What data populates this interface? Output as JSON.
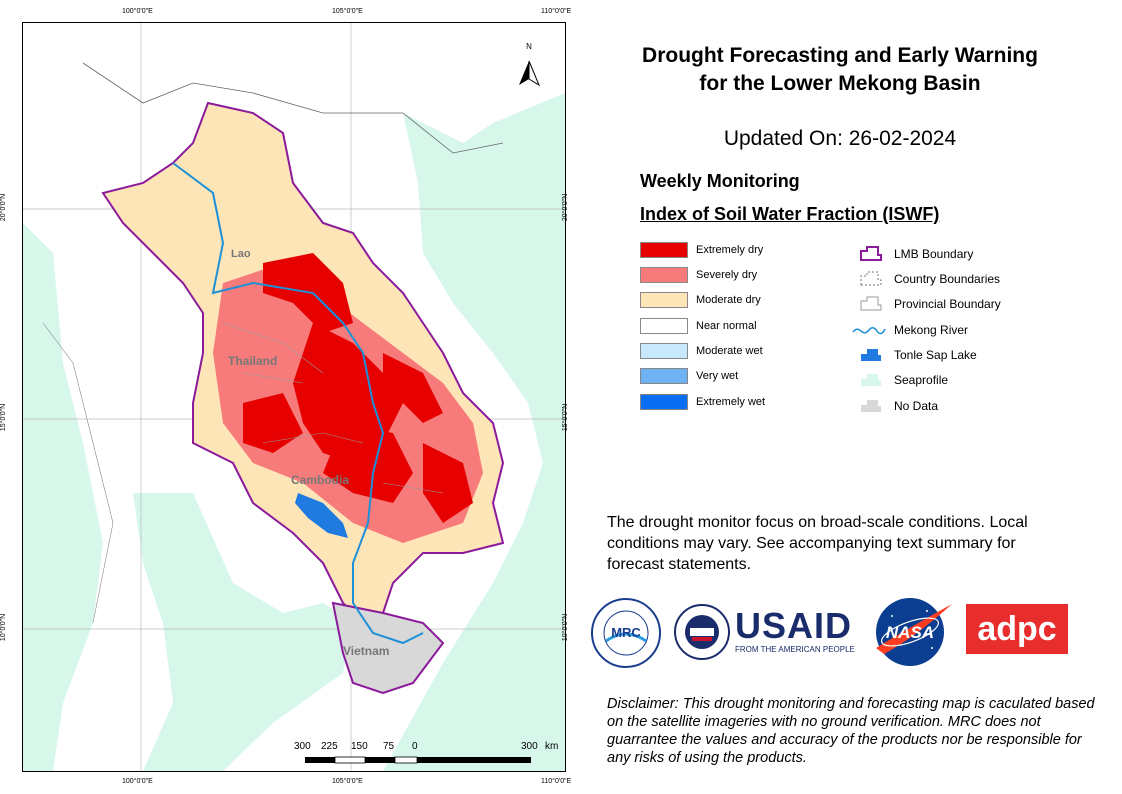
{
  "title_line1": "Drought Forecasting and Early Warning",
  "title_line2": "for the Lower Mekong Basin",
  "updated": "Updated On: 26-02-2024",
  "section": "Weekly Monitoring",
  "index_title": "Index of Soil Water Fraction (ISWF)",
  "legend_classes": [
    {
      "label": "Extremely dry",
      "color": "#e60000"
    },
    {
      "label": "Severely dry",
      "color": "#f77b7b"
    },
    {
      "label": "Moderate dry",
      "color": "#fde5b8"
    },
    {
      "label": "Near normal",
      "color": "#ffffff"
    },
    {
      "label": "Moderate wet",
      "color": "#c8e8fb"
    },
    {
      "label": "Very wet",
      "color": "#6fb2f4"
    },
    {
      "label": "Extremely wet",
      "color": "#0a6ef5"
    }
  ],
  "legend_features": [
    {
      "label": "LMB Boundary",
      "icon": "lmb-boundary-icon"
    },
    {
      "label": "Country Boundaries",
      "icon": "country-boundary-icon"
    },
    {
      "label": "Provincial Boundary",
      "icon": "provincial-boundary-icon"
    },
    {
      "label": "Mekong River",
      "icon": "river-icon"
    },
    {
      "label": "Tonle Sap Lake",
      "icon": "lake-icon"
    },
    {
      "label": "Seaprofile",
      "icon": "sea-icon"
    },
    {
      "label": "No Data",
      "icon": "nodata-icon"
    }
  ],
  "map": {
    "north_label": "N",
    "top_coords": [
      "100°0'0\"E",
      "105°0'0\"E",
      "110°0'0\"E"
    ],
    "bottom_coords": [
      "100°0'0\"E",
      "105°0'0\"E",
      "110°0'0\"E"
    ],
    "left_coords": [
      "20°0'0\"N",
      "15°0'0\"N",
      "10°0'0\"N"
    ],
    "right_coords": [
      "20°0'0\"N",
      "15°0'0\"N",
      "10°0'0\"N"
    ],
    "country_labels": [
      "Lao",
      "Thailand",
      "Cambodia",
      "Vietnam"
    ],
    "scale_labels": [
      "300",
      "225",
      "150",
      "75",
      "0",
      "300",
      "km"
    ]
  },
  "monitor_note": "The drought monitor focus on broad-scale conditions. Local conditions may vary. See accompanying text summary for forecast statements.",
  "logos": {
    "usaid": "USAID",
    "usaid_sub": "FROM THE AMERICAN PEOPLE",
    "nasa": "NASA",
    "adpc": "adpc",
    "mrc": "MRC"
  },
  "disclaimer": "Disclaimer: This drought monitoring and forecasting map is caculated based on the satellite imageries with no ground verification. MRC does not guarrantee the values and accuracy of the products nor be responsible for any risks of using the products."
}
